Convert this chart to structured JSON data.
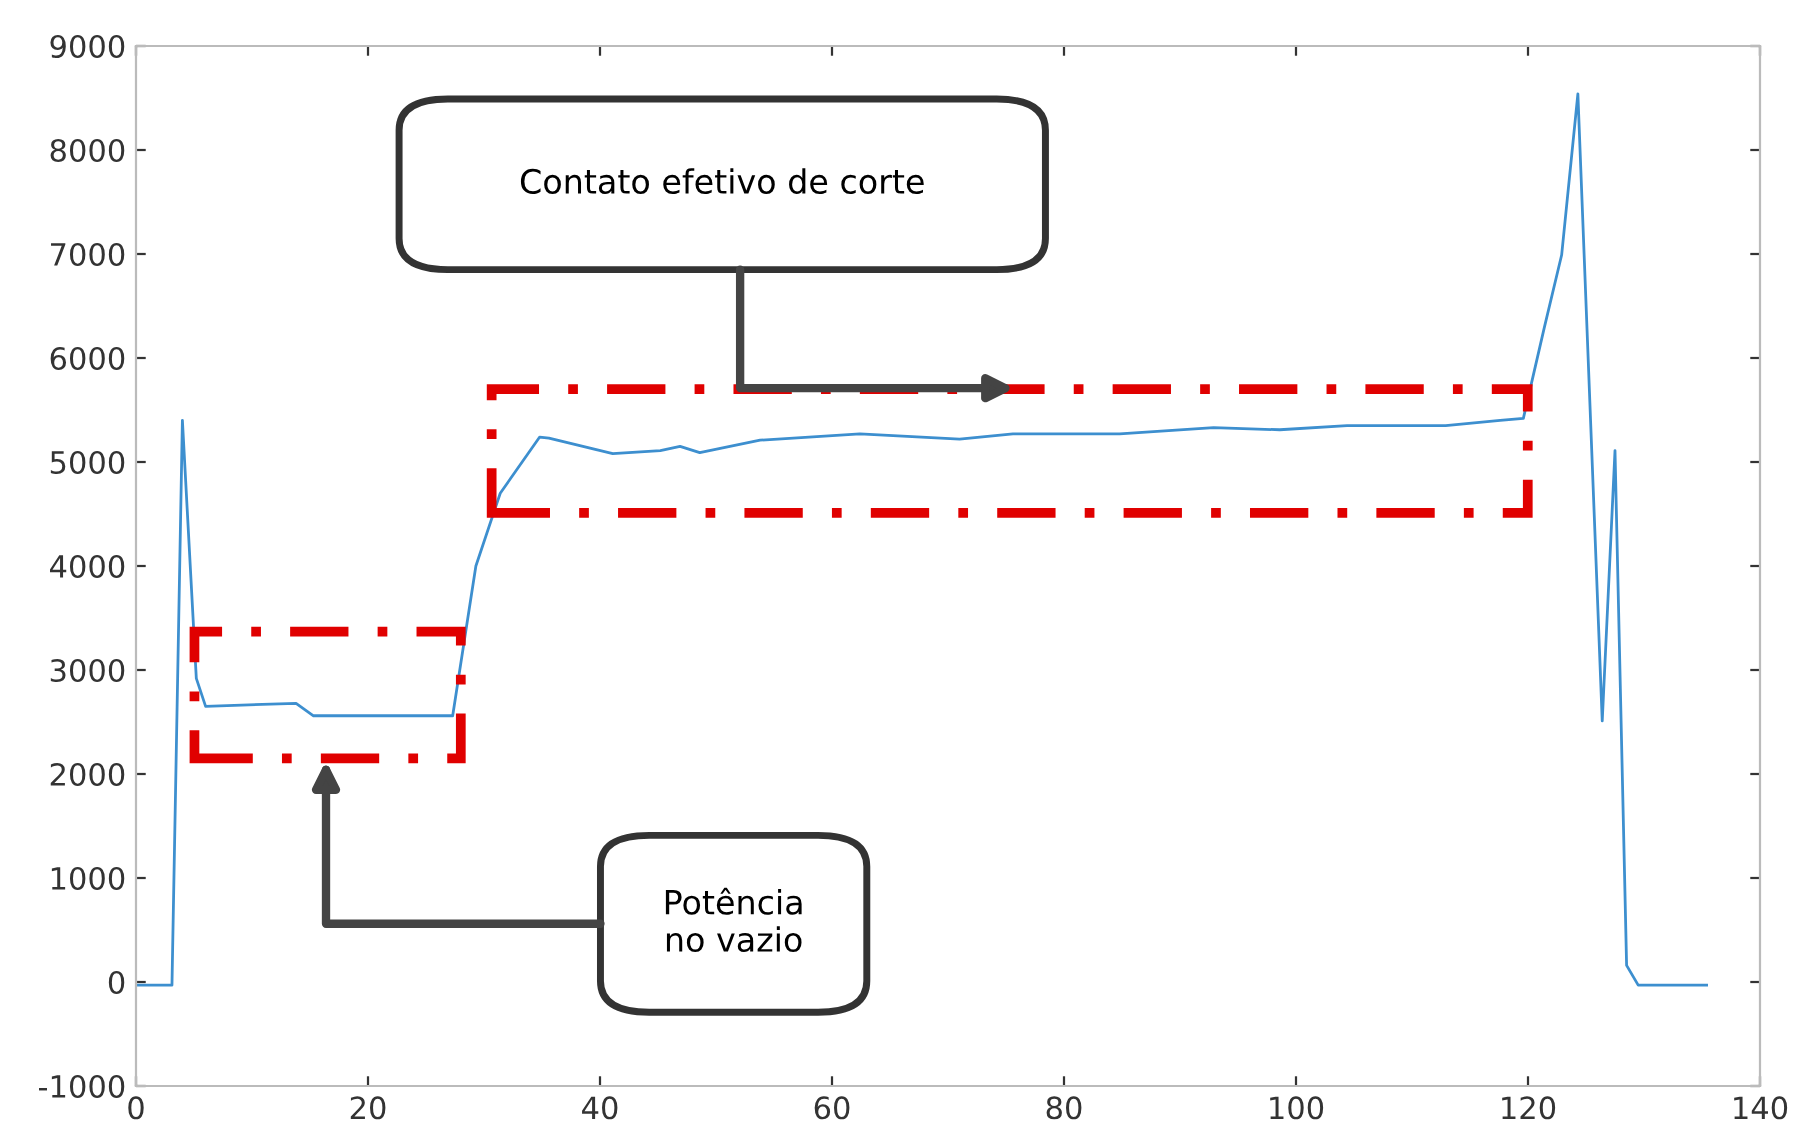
{
  "chart_data": {
    "type": "line",
    "x": [
      0,
      0.9,
      3.1,
      4.0,
      5.2,
      6.0,
      13.8,
      15.3,
      27.3,
      29.3,
      31.4,
      34.8,
      35.6,
      41.1,
      45.2,
      46.9,
      48.6,
      53.8,
      62.4,
      71,
      75.6,
      84.8,
      92.9,
      98.6,
      104.4,
      112.9,
      117.6,
      119.6,
      121.4,
      122.9,
      124.3,
      126.4,
      127.5,
      128.5,
      129.5,
      135.4
    ],
    "series": [
      {
        "color": "#3d8fcf",
        "values": [
          -30,
          -30,
          -30,
          5400,
          2920,
          2650,
          2680,
          2560,
          2560,
          4000,
          4700,
          5240,
          5230,
          5080,
          5110,
          5150,
          5090,
          5210,
          5270,
          5220,
          5270,
          5270,
          5330,
          5310,
          5350,
          5350,
          5400,
          5420,
          6290,
          6990,
          8540,
          2510,
          5110,
          160,
          -30,
          -30
        ]
      }
    ],
    "xlim": [
      0,
      140
    ],
    "xticks": [
      0,
      20,
      40,
      60,
      80,
      100,
      120,
      140
    ],
    "ylim": [
      -1000,
      9000
    ],
    "yticks": [
      -1000,
      0,
      1000,
      2000,
      3000,
      4000,
      5000,
      6000,
      7000,
      8000,
      9000
    ],
    "grid": false,
    "legend": false,
    "marker": "none",
    "line_style": "solid",
    "annotations": [
      "Potência\nno vazio",
      "Contato efetivo de corte"
    ]
  }
}
